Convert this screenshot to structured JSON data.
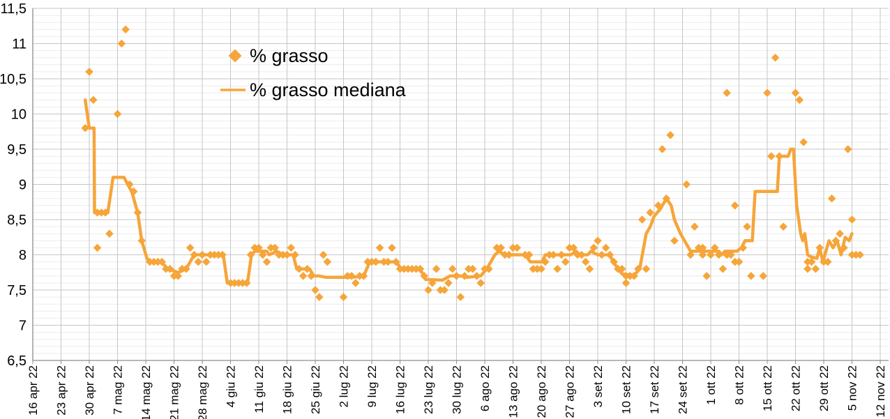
{
  "page": {
    "background": "#ffffff"
  },
  "legend": {
    "items": [
      {
        "label": "% grasso",
        "marker": "diamond"
      },
      {
        "label": "% grasso mediana",
        "marker": "line"
      }
    ]
  },
  "chart_data": {
    "type": "scatter",
    "title": "",
    "x_axis": {
      "unit": "date",
      "day0_label": "16 apr 22",
      "tick_every_days": 7,
      "range_days": [
        0,
        210
      ],
      "tick_labels": [
        "16 apr 22",
        "23 apr 22",
        "30 apr 22",
        "7 mag 22",
        "14 mag 22",
        "21 mag 22",
        "28 mag 22",
        "4 giu 22",
        "11 giu 22",
        "18 giu 22",
        "25 giu 22",
        "2 lug 22",
        "9 lug 22",
        "16 lug 22",
        "23 lug 22",
        "30 lug 22",
        "6 ago 22",
        "13 ago 22",
        "20 ago 22",
        "27 ago 22",
        "3 set 22",
        "10 set 22",
        "17 set 22",
        "24 set 22",
        "1 ott 22",
        "8 ott 22",
        "15 ott 22",
        "22 ott 22",
        "29 ott 22",
        "5 nov 22",
        "12 nov 22"
      ]
    },
    "y_axis": {
      "range": [
        6.5,
        11.5
      ],
      "major_step": 0.5,
      "minor_step": 0.1,
      "decimal_separator": ",",
      "tick_labels": [
        "6,5",
        "7",
        "7,5",
        "8",
        "8,5",
        "9",
        "9,5",
        "10",
        "10,5",
        "11",
        "11,5"
      ]
    },
    "grid": {
      "minor_color": "#ECECEC",
      "major_color": "#C6C6C6",
      "axis_color": "#8C8C8C"
    },
    "colors": {
      "accent": "#F6A53A",
      "text": "#000000",
      "background": "#FFFFFF"
    },
    "series": [
      {
        "name": "% grasso",
        "type": "scatter",
        "marker": "diamond",
        "color": "#F6A53A",
        "points": [
          [
            13,
            9.8
          ],
          [
            14,
            10.6
          ],
          [
            15,
            10.2
          ],
          [
            16,
            8.1
          ],
          [
            16,
            8.6
          ],
          [
            17,
            8.6
          ],
          [
            18,
            8.6
          ],
          [
            19,
            8.3
          ],
          [
            21,
            10.0
          ],
          [
            22,
            11.0
          ],
          [
            23,
            11.2
          ],
          [
            24,
            9.0
          ],
          [
            25,
            8.9
          ],
          [
            26,
            8.6
          ],
          [
            27,
            8.2
          ],
          [
            29,
            7.9
          ],
          [
            30,
            7.9
          ],
          [
            31,
            7.9
          ],
          [
            32,
            7.9
          ],
          [
            33,
            7.8
          ],
          [
            34,
            7.8
          ],
          [
            35,
            7.7
          ],
          [
            36,
            7.7
          ],
          [
            37,
            7.8
          ],
          [
            38,
            7.8
          ],
          [
            39,
            8.1
          ],
          [
            40,
            8.0
          ],
          [
            41,
            7.9
          ],
          [
            42,
            8.0
          ],
          [
            43,
            7.9
          ],
          [
            44,
            8.0
          ],
          [
            45,
            8.0
          ],
          [
            46,
            8.0
          ],
          [
            47,
            8.0
          ],
          [
            49,
            7.6
          ],
          [
            50,
            7.6
          ],
          [
            51,
            7.6
          ],
          [
            52,
            7.6
          ],
          [
            53,
            7.6
          ],
          [
            54,
            8.0
          ],
          [
            55,
            8.1
          ],
          [
            56,
            8.1
          ],
          [
            57,
            8.0
          ],
          [
            58,
            7.9
          ],
          [
            59,
            8.1
          ],
          [
            60,
            8.1
          ],
          [
            61,
            8.0
          ],
          [
            62,
            8.0
          ],
          [
            63,
            8.0
          ],
          [
            64,
            8.1
          ],
          [
            65,
            8.0
          ],
          [
            66,
            7.8
          ],
          [
            67,
            7.7
          ],
          [
            68,
            7.8
          ],
          [
            69,
            7.7
          ],
          [
            70,
            7.5
          ],
          [
            71,
            7.4
          ],
          [
            72,
            8.0
          ],
          [
            73,
            7.9
          ],
          [
            77,
            7.4
          ],
          [
            78,
            7.7
          ],
          [
            79,
            7.7
          ],
          [
            80,
            7.6
          ],
          [
            81,
            7.7
          ],
          [
            82,
            7.7
          ],
          [
            83,
            7.9
          ],
          [
            84,
            7.9
          ],
          [
            85,
            7.9
          ],
          [
            86,
            8.1
          ],
          [
            87,
            7.9
          ],
          [
            88,
            7.9
          ],
          [
            89,
            8.1
          ],
          [
            90,
            7.9
          ],
          [
            91,
            7.8
          ],
          [
            92,
            7.8
          ],
          [
            93,
            7.8
          ],
          [
            94,
            7.8
          ],
          [
            95,
            7.8
          ],
          [
            96,
            7.8
          ],
          [
            97,
            7.7
          ],
          [
            98,
            7.5
          ],
          [
            99,
            7.6
          ],
          [
            100,
            7.8
          ],
          [
            101,
            7.5
          ],
          [
            102,
            7.5
          ],
          [
            103,
            7.6
          ],
          [
            104,
            7.8
          ],
          [
            105,
            7.7
          ],
          [
            106,
            7.4
          ],
          [
            107,
            7.7
          ],
          [
            108,
            7.8
          ],
          [
            109,
            7.8
          ],
          [
            110,
            7.7
          ],
          [
            111,
            7.6
          ],
          [
            112,
            7.8
          ],
          [
            113,
            7.8
          ],
          [
            115,
            8.1
          ],
          [
            116,
            8.1
          ],
          [
            117,
            8.0
          ],
          [
            118,
            8.0
          ],
          [
            119,
            8.1
          ],
          [
            120,
            8.1
          ],
          [
            122,
            8.0
          ],
          [
            123,
            8.0
          ],
          [
            124,
            7.8
          ],
          [
            125,
            7.8
          ],
          [
            126,
            7.8
          ],
          [
            127,
            7.9
          ],
          [
            128,
            8.0
          ],
          [
            129,
            8.0
          ],
          [
            130,
            7.8
          ],
          [
            131,
            8.0
          ],
          [
            132,
            7.9
          ],
          [
            133,
            8.1
          ],
          [
            134,
            8.1
          ],
          [
            135,
            8.0
          ],
          [
            136,
            8.0
          ],
          [
            137,
            7.9
          ],
          [
            138,
            7.8
          ],
          [
            139,
            8.1
          ],
          [
            140,
            8.2
          ],
          [
            141,
            8.0
          ],
          [
            142,
            8.1
          ],
          [
            143,
            8.0
          ],
          [
            144,
            7.9
          ],
          [
            145,
            7.8
          ],
          [
            146,
            7.8
          ],
          [
            147,
            7.7
          ],
          [
            147,
            7.6
          ],
          [
            148,
            7.7
          ],
          [
            149,
            7.7
          ],
          [
            150,
            7.8
          ],
          [
            151,
            8.5
          ],
          [
            152,
            7.8
          ],
          [
            153,
            8.6
          ],
          [
            155,
            8.7
          ],
          [
            156,
            9.5
          ],
          [
            157,
            8.8
          ],
          [
            158,
            9.7
          ],
          [
            159,
            8.2
          ],
          [
            162,
            9.0
          ],
          [
            163,
            8.0
          ],
          [
            164,
            8.4
          ],
          [
            165,
            8.1
          ],
          [
            166,
            8.1
          ],
          [
            166,
            8.0
          ],
          [
            167,
            7.7
          ],
          [
            168,
            8.0
          ],
          [
            169,
            8.1
          ],
          [
            170,
            8.0
          ],
          [
            171,
            7.8
          ],
          [
            172,
            10.3
          ],
          [
            172,
            8.0
          ],
          [
            173,
            8.0
          ],
          [
            174,
            7.9
          ],
          [
            174,
            8.7
          ],
          [
            175,
            7.9
          ],
          [
            176,
            8.1
          ],
          [
            177,
            8.4
          ],
          [
            178,
            7.7
          ],
          [
            181,
            7.7
          ],
          [
            182,
            10.3
          ],
          [
            183,
            9.4
          ],
          [
            184,
            10.8
          ],
          [
            185,
            9.4
          ],
          [
            186,
            8.4
          ],
          [
            189,
            10.3
          ],
          [
            190,
            10.2
          ],
          [
            191,
            9.6
          ],
          [
            192,
            7.9
          ],
          [
            192,
            7.8
          ],
          [
            193,
            7.9
          ],
          [
            194,
            7.8
          ],
          [
            195,
            8.1
          ],
          [
            196,
            7.9
          ],
          [
            197,
            7.9
          ],
          [
            198,
            8.8
          ],
          [
            199,
            8.2
          ],
          [
            200,
            8.3
          ],
          [
            201,
            8.1
          ],
          [
            202,
            9.5
          ],
          [
            203,
            8.5
          ],
          [
            203,
            8.0
          ],
          [
            204,
            8.0
          ],
          [
            205,
            8.0
          ]
        ]
      },
      {
        "name": "% grasso mediana",
        "type": "line",
        "color": "#F6A53A",
        "points": [
          [
            13,
            10.2
          ],
          [
            14,
            9.8
          ],
          [
            15.2,
            9.8
          ],
          [
            15.3,
            8.6
          ],
          [
            18.6,
            8.6
          ],
          [
            19.9,
            9.1
          ],
          [
            22.6,
            9.1
          ],
          [
            23.5,
            9.0
          ],
          [
            24.5,
            8.9
          ],
          [
            26,
            8.6
          ],
          [
            27,
            8.2
          ],
          [
            28.3,
            7.95
          ],
          [
            29,
            7.9
          ],
          [
            31.8,
            7.9
          ],
          [
            33.5,
            7.8
          ],
          [
            36,
            7.75
          ],
          [
            38,
            7.8
          ],
          [
            39.5,
            7.95
          ],
          [
            40,
            8.0
          ],
          [
            47.2,
            8.0
          ],
          [
            48.2,
            7.6
          ],
          [
            53.2,
            7.6
          ],
          [
            54.2,
            8.0
          ],
          [
            55,
            8.05
          ],
          [
            58,
            8.05
          ],
          [
            58.6,
            8.0
          ],
          [
            60.5,
            8.05
          ],
          [
            62,
            8.0
          ],
          [
            64.5,
            8.0
          ],
          [
            65.4,
            7.8
          ],
          [
            68.6,
            7.8
          ],
          [
            69.6,
            7.7
          ],
          [
            71,
            7.7
          ],
          [
            72.7,
            7.68
          ],
          [
            79,
            7.68
          ],
          [
            82,
            7.7
          ],
          [
            83.5,
            7.9
          ],
          [
            90,
            7.9
          ],
          [
            91.3,
            7.8
          ],
          [
            96,
            7.8
          ],
          [
            97.3,
            7.65
          ],
          [
            101.5,
            7.64
          ],
          [
            103.4,
            7.7
          ],
          [
            106,
            7.7
          ],
          [
            107.5,
            7.68
          ],
          [
            111,
            7.7
          ],
          [
            112.5,
            7.8
          ],
          [
            114.5,
            8.0
          ],
          [
            115.5,
            8.05
          ],
          [
            117,
            8.0
          ],
          [
            122,
            8.0
          ],
          [
            123.3,
            7.9
          ],
          [
            126.2,
            7.9
          ],
          [
            127,
            8.0
          ],
          [
            133.3,
            8.0
          ],
          [
            134.7,
            8.05
          ],
          [
            135.5,
            8.0
          ],
          [
            137.5,
            8.0
          ],
          [
            138.3,
            8.05
          ],
          [
            140,
            8.0
          ],
          [
            143,
            8.0
          ],
          [
            143.8,
            7.9
          ],
          [
            146,
            7.73
          ],
          [
            149,
            7.71
          ],
          [
            150.4,
            7.8
          ],
          [
            152,
            8.3
          ],
          [
            153,
            8.4
          ],
          [
            154,
            8.55
          ],
          [
            155.5,
            8.65
          ],
          [
            157,
            8.8
          ],
          [
            158.2,
            8.7
          ],
          [
            159,
            8.5
          ],
          [
            160.5,
            8.3
          ],
          [
            162,
            8.15
          ],
          [
            163,
            8.05
          ],
          [
            170,
            8.05
          ],
          [
            170.7,
            8.0
          ],
          [
            171.5,
            8.05
          ],
          [
            174.5,
            8.05
          ],
          [
            175.6,
            8.1
          ],
          [
            176.5,
            8.2
          ],
          [
            178.3,
            8.2
          ],
          [
            179,
            8.9
          ],
          [
            184.5,
            8.9
          ],
          [
            185,
            9.4
          ],
          [
            187.2,
            9.4
          ],
          [
            187.8,
            9.5
          ],
          [
            188.5,
            9.5
          ],
          [
            189.3,
            8.7
          ],
          [
            190.3,
            8.3
          ],
          [
            190.8,
            8.2
          ],
          [
            191.3,
            8.3
          ],
          [
            192,
            8.0
          ],
          [
            192.8,
            7.97
          ],
          [
            194.3,
            7.95
          ],
          [
            195,
            8.1
          ],
          [
            195.8,
            7.9
          ],
          [
            197.3,
            8.2
          ],
          [
            198.3,
            8.1
          ],
          [
            199.3,
            8.2
          ],
          [
            200.3,
            8.0
          ],
          [
            201.3,
            8.25
          ],
          [
            202.3,
            8.2
          ],
          [
            203,
            8.3
          ]
        ]
      }
    ]
  }
}
